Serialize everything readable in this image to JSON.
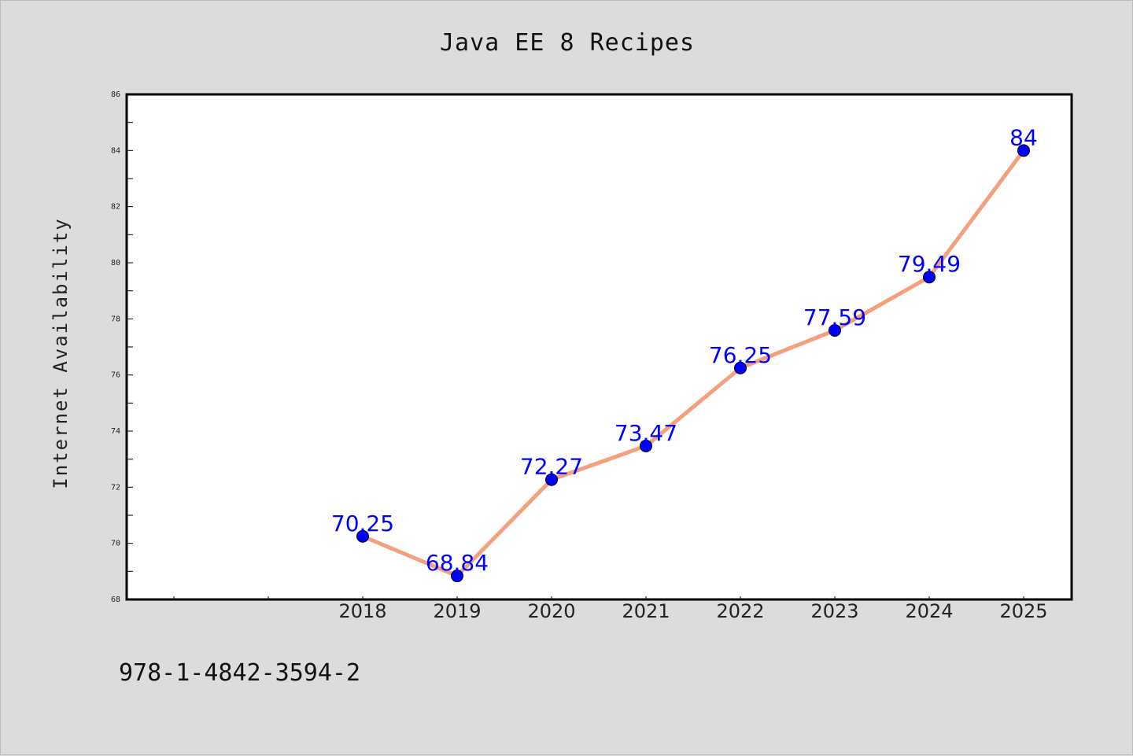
{
  "chart_data": {
    "type": "line",
    "title": "Java EE 8 Recipes",
    "xlabel": "",
    "ylabel": "Internet Availability",
    "categories": [
      "",
      "",
      "2018",
      "2019",
      "2020",
      "2021",
      "2022",
      "2023",
      "2024",
      "2025"
    ],
    "x": [
      "2018",
      "2019",
      "2020",
      "2021",
      "2022",
      "2023",
      "2024",
      "2025"
    ],
    "series": [
      {
        "values": [
          70.25,
          68.84,
          72.27,
          73.47,
          76.25,
          77.59,
          79.49,
          84
        ],
        "labels": [
          "70.25",
          "68.84",
          "72.27",
          "73.47",
          "76.25",
          "77.59",
          "79.49",
          "84"
        ]
      }
    ],
    "ylim": [
      68,
      86
    ],
    "y_ticks": [
      "68",
      "70",
      "72",
      "74",
      "76",
      "78",
      "80",
      "82",
      "84",
      "86"
    ],
    "grid": false,
    "legend": "none",
    "colors": {
      "line": "#f4a07e",
      "marker": "#0000ff",
      "data_label": "#0000ff",
      "background": "#dcdcdc",
      "plot_area": "#ffffff",
      "axis": "#000000"
    }
  },
  "footer": {
    "isbn": "978-1-4842-3594-2"
  }
}
